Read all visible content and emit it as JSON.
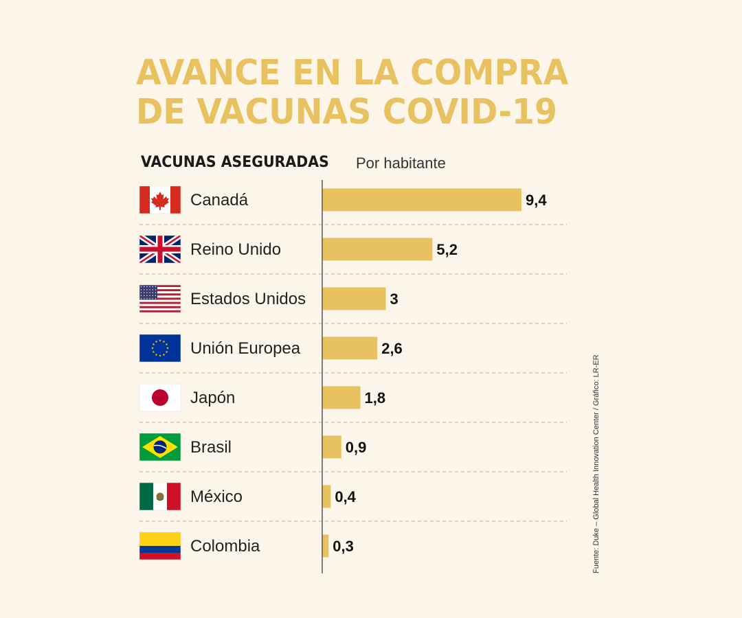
{
  "title_lines": [
    "AVANCE EN LA COMPRA",
    "DE VACUNAS COVID-19"
  ],
  "subtitle": "VACUNAS ASEGURADAS",
  "unit_label": "Por habitante",
  "source": "Fuente: Duke – Global Health Innovation Center / Gráfico: LR-ER",
  "colors": {
    "bar": "#e8c160",
    "background": "#fcf6ea",
    "title": "#e8c160"
  },
  "chart_data": {
    "type": "bar",
    "orientation": "horizontal",
    "title": "AVANCE EN LA COMPRA DE VACUNAS COVID-19",
    "xlabel": "",
    "ylabel": "",
    "grid": false,
    "categories": [
      "Canadá",
      "Reino Unido",
      "Estados Unidos",
      "Unión Europea",
      "Japón",
      "Brasil",
      "México",
      "Colombia"
    ],
    "values": [
      9.4,
      5.2,
      3,
      2.6,
      1.8,
      0.9,
      0.4,
      0.3
    ],
    "value_labels": [
      "9,4",
      "5,2",
      "3",
      "2,6",
      "1,8",
      "0,9",
      "0,4",
      "0,3"
    ],
    "flags": [
      "canada-flag-icon",
      "uk-flag-icon",
      "usa-flag-icon",
      "eu-flag-icon",
      "japan-flag-icon",
      "brazil-flag-icon",
      "mexico-flag-icon",
      "colombia-flag-icon"
    ],
    "xlim": [
      0,
      9.4
    ]
  }
}
